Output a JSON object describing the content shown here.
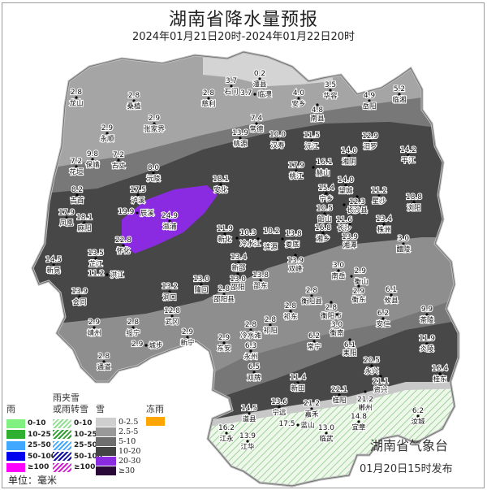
{
  "title": "湖南省降水量预报",
  "subtitle": "2024年01月21日20时-2024年01月22日20时",
  "agency": "湖南省气象台",
  "issued": "01月20日15时发布",
  "legend": {
    "rain": {
      "title": "雨",
      "items": [
        {
          "label": "0-10",
          "color": "#80f080"
        },
        {
          "label": "10-25",
          "color": "#30b030"
        },
        {
          "label": "25-50",
          "color": "#40a8ff"
        },
        {
          "label": "50-100",
          "color": "#0000ee"
        },
        {
          "label": "≥100",
          "color": "#ff00ff"
        }
      ]
    },
    "mixed": {
      "title_line1": "雨夹雪",
      "title_line2": "或雨转雪",
      "items": [
        {
          "label": "0-10",
          "color": "#90e090"
        },
        {
          "label": "10-25",
          "color": "#30a030"
        },
        {
          "label": "25-50",
          "color": "#40a8ff"
        },
        {
          "label": "50-100",
          "color": "#1010a0"
        },
        {
          "label": "≥100",
          "color": "#d020d0"
        }
      ]
    },
    "snow": {
      "title": "雪",
      "items": [
        {
          "label": "0-2.5",
          "color": "#cfcfcf"
        },
        {
          "label": "2.5-5",
          "color": "#999999"
        },
        {
          "label": "5-10",
          "color": "#6e6e6e"
        },
        {
          "label": "10-20",
          "color": "#444444"
        },
        {
          "label": "20-30",
          "color": "#8a2be2"
        },
        {
          "label": "≥30",
          "color": "#2a0838"
        }
      ]
    },
    "freezing_rain": {
      "title": "冻雨",
      "color": "#ffa500"
    },
    "unit": "单位：毫米"
  },
  "stations": [
    {
      "name": "龙山",
      "value": "2.8"
    },
    {
      "name": "桑植",
      "value": "2.8"
    },
    {
      "name": "张家界",
      "value": "2.9"
    },
    {
      "name": "慈利",
      "value": "2.8"
    },
    {
      "name": "石门",
      "value": "3.7"
    },
    {
      "name": "澧县",
      "value": "0.2"
    },
    {
      "name": "临澧",
      "value": "3.7"
    },
    {
      "name": "安乡",
      "value": "4.0"
    },
    {
      "name": "华容",
      "value": "3.5"
    },
    {
      "name": "南县",
      "value": "4.8"
    },
    {
      "name": "岳阳",
      "value": "4.9"
    },
    {
      "name": "临湘",
      "value": "5.2"
    },
    {
      "name": "永顺",
      "value": "2.9"
    },
    {
      "name": "常德",
      "value": "7.4"
    },
    {
      "name": "桃源",
      "value": "13.9"
    },
    {
      "name": "汉寿",
      "value": "10.0"
    },
    {
      "name": "沅江",
      "value": "11.5"
    },
    {
      "name": "汨罗",
      "value": "12.9"
    },
    {
      "name": "湘阴",
      "value": "14.0"
    },
    {
      "name": "平江",
      "value": "14.2"
    },
    {
      "name": "保靖",
      "value": "9.8"
    },
    {
      "name": "花垣",
      "value": "7.2"
    },
    {
      "name": "古丈",
      "value": "7.2"
    },
    {
      "name": "沅陵",
      "value": "8.0"
    },
    {
      "name": "安化",
      "value": "18.1"
    },
    {
      "name": "桃江",
      "value": "17.9"
    },
    {
      "name": "赫山",
      "value": "16.1"
    },
    {
      "name": "望城",
      "value": "14.0"
    },
    {
      "name": "宁乡",
      "value": "15.4"
    },
    {
      "name": "长沙县",
      "value": "12.3"
    },
    {
      "name": "星沙",
      "value": "11.2"
    },
    {
      "name": "长沙",
      "value": "11.6"
    },
    {
      "name": "韶山",
      "value": "10.5"
    },
    {
      "name": "湘潭",
      "value": "13.9"
    },
    {
      "name": "株洲",
      "value": "13.4"
    },
    {
      "name": "湘乡",
      "value": "16.8"
    },
    {
      "name": "浏阳",
      "value": "18.8"
    },
    {
      "name": "醴陵",
      "value": "3.0"
    },
    {
      "name": "吉首",
      "value": "8.2"
    },
    {
      "name": "泸溪",
      "value": "17.5"
    },
    {
      "name": "辰溪",
      "value": "19.9"
    },
    {
      "name": "溆浦",
      "value": "24.9"
    },
    {
      "name": "凤凰",
      "value": "17.9"
    },
    {
      "name": "麻阳",
      "value": "18.1"
    },
    {
      "name": "怀化",
      "value": "22.8"
    },
    {
      "name": "新晃",
      "value": "14.5"
    },
    {
      "name": "芷江",
      "value": "13.5"
    },
    {
      "name": "洪江",
      "value": "11.2"
    },
    {
      "name": "会同",
      "value": "13.9"
    },
    {
      "name": "新化",
      "value": "11.9"
    },
    {
      "name": "冷水江",
      "value": "10.3"
    },
    {
      "name": "涟源",
      "value": "10.2"
    },
    {
      "name": "娄底",
      "value": "13.8"
    },
    {
      "name": "双峰",
      "value": "13.9"
    },
    {
      "name": "新邵",
      "value": "13.4"
    },
    {
      "name": "邵阳",
      "value": "13.0"
    },
    {
      "name": "邵东",
      "value": "13.8"
    },
    {
      "name": "洞口",
      "value": "13.2"
    },
    {
      "name": "隆回",
      "value": "13.0"
    },
    {
      "name": "邵阳县",
      "value": "2.8"
    },
    {
      "name": "武冈",
      "value": "12.8"
    },
    {
      "name": "靖州",
      "value": "2.9"
    },
    {
      "name": "绥宁",
      "value": "2.8"
    },
    {
      "name": "城步",
      "value": "2.9"
    },
    {
      "name": "通道",
      "value": "2.8"
    },
    {
      "name": "新宁",
      "value": "2.9"
    },
    {
      "name": "东安",
      "value": "2.9"
    },
    {
      "name": "冷水滩",
      "value": "2.8"
    },
    {
      "name": "祁阳",
      "value": "2.8"
    },
    {
      "name": "永州",
      "value": "6.3"
    },
    {
      "name": "双牌",
      "value": "6.5"
    },
    {
      "name": "祁东",
      "value": "2.8"
    },
    {
      "name": "衡阳县",
      "value": "2.8"
    },
    {
      "name": "衡阳市",
      "value": "2.8"
    },
    {
      "name": "衡南",
      "value": "3.0"
    },
    {
      "name": "南岳",
      "value": "3.0"
    },
    {
      "name": "衡山",
      "value": "2.9"
    },
    {
      "name": "衡东",
      "value": "2.9"
    },
    {
      "name": "攸县",
      "value": "6.1"
    },
    {
      "name": "茶陵",
      "value": "9.9"
    },
    {
      "name": "安仁",
      "value": "6.2"
    },
    {
      "name": "常宁",
      "value": "6.2"
    },
    {
      "name": "耒阳",
      "value": "6.1"
    },
    {
      "name": "炎陵",
      "value": "11.9"
    },
    {
      "name": "永兴",
      "value": "20.5"
    },
    {
      "name": "资兴",
      "value": "21.1"
    },
    {
      "name": "桂东",
      "value": "16.4"
    },
    {
      "name": "新田",
      "value": "11.4"
    },
    {
      "name": "桂阳",
      "value": "22.1"
    },
    {
      "name": "郴州",
      "value": "21.2"
    },
    {
      "name": "宁远",
      "value": "13.6"
    },
    {
      "name": "嘉禾",
      "value": "21.2"
    },
    {
      "name": "道县",
      "value": "14.5"
    },
    {
      "name": "蓝山",
      "value": "17.5"
    },
    {
      "name": "临武",
      "value": "13.0"
    },
    {
      "name": "宜章",
      "value": "14.8"
    },
    {
      "name": "汝城",
      "value": "6.2"
    },
    {
      "name": "江永",
      "value": "16.2"
    },
    {
      "name": "江华",
      "value": "13.9"
    }
  ]
}
